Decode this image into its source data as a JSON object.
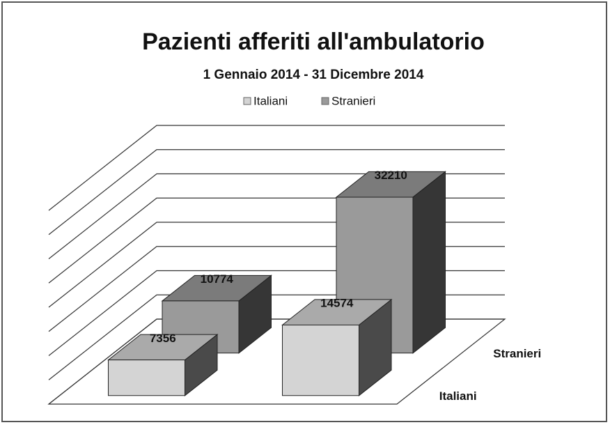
{
  "chart_data": {
    "type": "bar3d",
    "title": "Pazienti afferiti all'ambulatorio",
    "subtitle": "1 Gennaio 2014 - 31 Dicembre 2014",
    "categories": [
      null,
      null
    ],
    "series": [
      {
        "name": "Italiani",
        "color": "#d4d4d4",
        "values": [
          7356,
          14574
        ]
      },
      {
        "name": "Stranieri",
        "color": "#9a9a9a",
        "values": [
          10774,
          32210
        ]
      }
    ],
    "ylim": [
      0,
      40000
    ],
    "yticks": [
      0,
      5000,
      10000,
      15000,
      20000,
      25000,
      30000,
      35000,
      40000
    ],
    "grid": true,
    "legend": "top"
  }
}
